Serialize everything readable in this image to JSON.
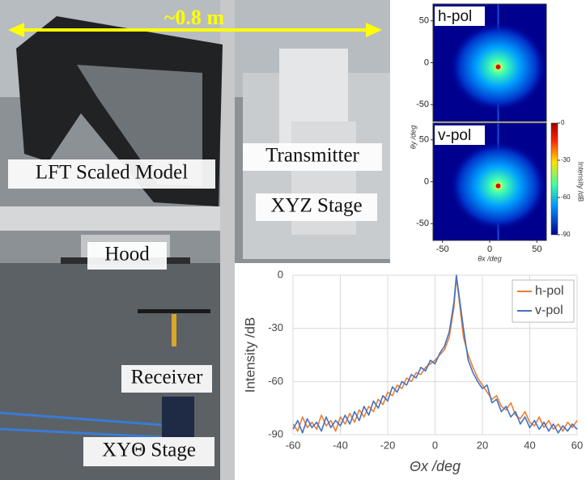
{
  "photo": {
    "labels": [
      "~0.8 m",
      "LFT Scaled Model",
      "Transmitter",
      "XYZ Stage",
      "Hood",
      "Receiver",
      "XYΘ Stage"
    ]
  },
  "chart_data": [
    {
      "type": "heatmap",
      "label": "h-pol",
      "xlim": [
        -60,
        60
      ],
      "ylim": [
        -70,
        70
      ],
      "yticks": [
        50,
        0,
        -50
      ],
      "peak": [
        9,
        -5
      ]
    },
    {
      "type": "heatmap",
      "label": "v-pol",
      "xlim": [
        -60,
        60
      ],
      "ylim": [
        -70,
        70
      ],
      "yticks": [
        50,
        0,
        -50
      ],
      "xticks": [
        -50,
        0,
        50
      ],
      "xlabel": "θx /deg",
      "ylabel": "θy /deg",
      "peak": [
        9,
        -5
      ],
      "colorbar": {
        "label": "Intensity /dB",
        "lim": [
          -90,
          0
        ],
        "ticks": [
          0,
          -30,
          -60,
          -90
        ]
      }
    },
    {
      "type": "line",
      "xlabel": "Θx /deg",
      "ylabel": "Intensity /dB",
      "xlim": [
        -60,
        60
      ],
      "ylim": [
        -90,
        0
      ],
      "xticks": [
        -60,
        -40,
        -20,
        0,
        20,
        40,
        60
      ],
      "yticks": [
        0,
        -30,
        -60,
        -90
      ],
      "grid": true,
      "legend": "upper-right",
      "x": [
        -60,
        -58,
        -56,
        -54,
        -52,
        -50,
        -48,
        -46,
        -44,
        -42,
        -40,
        -38,
        -36,
        -34,
        -32,
        -30,
        -28,
        -26,
        -24,
        -22,
        -20,
        -18,
        -16,
        -14,
        -12,
        -10,
        -8,
        -6,
        -4,
        -2,
        0,
        2,
        4,
        6,
        8,
        9,
        10,
        12,
        14,
        16,
        18,
        20,
        22,
        24,
        26,
        28,
        30,
        32,
        34,
        36,
        38,
        40,
        42,
        44,
        46,
        48,
        50,
        52,
        54,
        56,
        58,
        60
      ],
      "series": [
        {
          "name": "h-pol",
          "color": "#ed7d31",
          "values": [
            -84,
            -88,
            -80,
            -86,
            -83,
            -87,
            -79,
            -85,
            -82,
            -88,
            -80,
            -84,
            -78,
            -83,
            -76,
            -80,
            -74,
            -77,
            -70,
            -73,
            -66,
            -68,
            -62,
            -64,
            -58,
            -60,
            -55,
            -56,
            -52,
            -50,
            -48,
            -45,
            -42,
            -35,
            -18,
            -1,
            -12,
            -35,
            -45,
            -52,
            -58,
            -62,
            -66,
            -70,
            -68,
            -74,
            -76,
            -72,
            -79,
            -81,
            -77,
            -83,
            -85,
            -80,
            -86,
            -82,
            -87,
            -84,
            -88,
            -83,
            -86,
            -82
          ]
        },
        {
          "name": "v-pol",
          "color": "#4472c4",
          "values": [
            -87,
            -82,
            -89,
            -81,
            -86,
            -83,
            -88,
            -80,
            -86,
            -82,
            -85,
            -79,
            -84,
            -77,
            -82,
            -74,
            -79,
            -71,
            -75,
            -68,
            -71,
            -63,
            -66,
            -60,
            -62,
            -56,
            -58,
            -52,
            -54,
            -48,
            -50,
            -44,
            -40,
            -32,
            -15,
            0,
            -10,
            -30,
            -48,
            -55,
            -60,
            -64,
            -62,
            -72,
            -70,
            -77,
            -74,
            -80,
            -77,
            -84,
            -80,
            -86,
            -82,
            -87,
            -83,
            -88,
            -84,
            -89,
            -85,
            -88,
            -84,
            -87
          ]
        }
      ]
    }
  ]
}
